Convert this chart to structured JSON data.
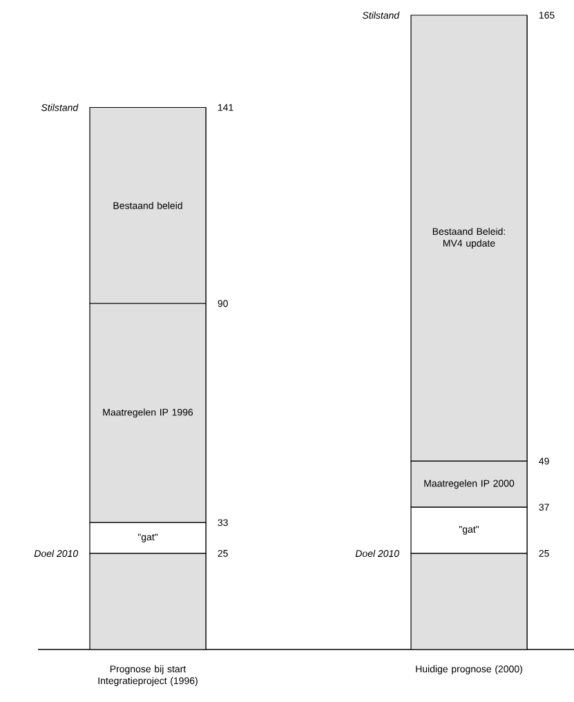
{
  "chart_data": [
    {
      "type": "bar",
      "stacked": true,
      "categories": [
        "Prognose bij start Integratieproject (1996)"
      ],
      "ylim": [
        0,
        141
      ],
      "yticks": [
        25,
        33,
        90,
        141
      ],
      "series": [
        {
          "color": "#e0e0e0",
          "values": [
            25
          ]
        },
        {
          "name": "\"gat\"",
          "color": "#ffffff",
          "values": [
            8
          ]
        },
        {
          "name": "Maatregelen IP 1996",
          "color": "#e0e0e0",
          "values": [
            57
          ]
        },
        {
          "name": "Bestaand beleid",
          "color": "#e0e0e0",
          "values": [
            51
          ]
        }
      ],
      "annotations": [
        "Stilstand",
        "Doel 2010"
      ]
    },
    {
      "type": "bar",
      "stacked": true,
      "categories": [
        "Huidige prognose (2000)"
      ],
      "ylim": [
        0,
        165
      ],
      "yticks": [
        25,
        37,
        49,
        165
      ],
      "series": [
        {
          "color": "#e0e0e0",
          "values": [
            25
          ]
        },
        {
          "name": "\"gat\"",
          "color": "#ffffff",
          "values": [
            12
          ]
        },
        {
          "name": "Maatregelen IP 2000",
          "color": "#e0e0e0",
          "values": [
            12
          ]
        },
        {
          "name": "Bestaand Beleid: MV4 update",
          "color": "#e0e0e0",
          "values": [
            116
          ]
        }
      ],
      "annotations": [
        "Stilstand",
        "Doel 2010"
      ]
    }
  ]
}
